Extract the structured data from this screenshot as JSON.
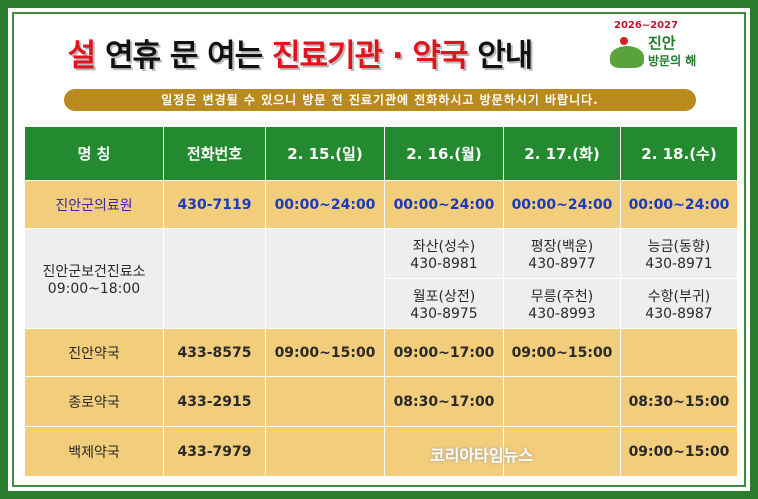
{
  "title": {
    "p1": "설",
    "p2": " 연휴 문 여는 ",
    "p3": "진료기관 · 약국",
    "p4": " 안내"
  },
  "logo": {
    "years": "2026~2027",
    "name": "진안",
    "sub": "방문의 해"
  },
  "notice": "일정은 변경될 수 있으니 방문 전 진료기관에 전화하시고 방문하시기 바랍니다.",
  "headers": [
    "명 칭",
    "전화번호",
    "2. 15.(일)",
    "2. 16.(월)",
    "2. 17.(화)",
    "2. 18.(수)"
  ],
  "rows": [
    {
      "name": "진안군의료원",
      "phone": "430-7119",
      "d15": "00:00~24:00",
      "d16": "00:00~24:00",
      "d17": "00:00~24:00",
      "d18": "00:00~24:00"
    },
    {
      "name": "진안군보건진료소",
      "hours": "09:00~18:00",
      "d16a": "좌산(성수)",
      "d16a_tel": "430-8981",
      "d17a": "평장(백운)",
      "d17a_tel": "430-8977",
      "d18a": "능금(동향)",
      "d18a_tel": "430-8971",
      "d16b": "월포(상전)",
      "d16b_tel": "430-8975",
      "d17b": "무릉(주천)",
      "d17b_tel": "430-8993",
      "d18b": "수항(부귀)",
      "d18b_tel": "430-8987"
    },
    {
      "name": "진안약국",
      "phone": "433-8575",
      "d15": "09:00~15:00",
      "d16": "09:00~17:00",
      "d17": "09:00~15:00",
      "d18": ""
    },
    {
      "name": "종로약국",
      "phone": "433-2915",
      "d15": "",
      "d16": "08:30~17:00",
      "d17": "",
      "d18": "08:30~15:00"
    },
    {
      "name": "백제약국",
      "phone": "433-7979",
      "d15": "",
      "d16": "",
      "d17": "",
      "d18": "09:00~15:00"
    }
  ],
  "watermark": "코리아타임뉴스",
  "colors": {
    "header": "#238a2f",
    "row": "#f2cd7b",
    "gray": "#eeeeee",
    "accent": "#e0141e"
  }
}
